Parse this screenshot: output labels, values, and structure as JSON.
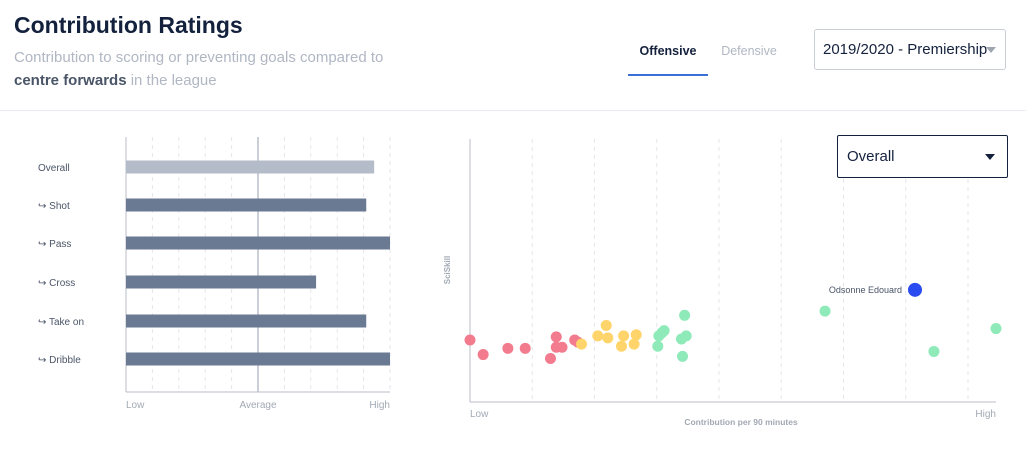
{
  "header": {
    "title": "Contribution Ratings",
    "subtitle_line1": "Contribution to scoring or preventing goals compared to",
    "subtitle_bold": "centre forwards",
    "subtitle_rest": " in the league"
  },
  "tabs": [
    {
      "label": "Offensive",
      "active": true
    },
    {
      "label": "Defensive",
      "active": false
    }
  ],
  "season_select": {
    "value": "2019/2020 - Premiership"
  },
  "view_select": {
    "value": "Overall"
  },
  "colors": {
    "primary_bar": "#6b7a93",
    "overall_bar": "#b4bcc9",
    "accent": "#3b6fd6",
    "highlight": "#2a4bf0",
    "red": "#f27c8e",
    "yellow": "#ffd46b",
    "green": "#8eeab8"
  },
  "chart_data": [
    {
      "type": "bar",
      "orientation": "horizontal",
      "categories": [
        "Overall",
        "↪ Shot",
        "↪ Pass",
        "↪ Cross",
        "↪ Take on",
        "↪ Dribble"
      ],
      "values": [
        0.94,
        0.91,
        1.0,
        0.72,
        0.91,
        1.0
      ],
      "xlim": [
        0,
        1
      ],
      "x_tick_labels": [
        "Low",
        "Average",
        "High"
      ],
      "x_tick_positions": [
        0,
        0.5,
        1
      ],
      "grid": true
    },
    {
      "type": "scatter",
      "xlabel": "Contribution per 90 minutes",
      "ylabel": "SciSkill",
      "x_tick_labels": [
        "Low",
        "High"
      ],
      "xlim": [
        0,
        100
      ],
      "ylim": [
        0,
        100
      ],
      "grid": true,
      "highlight": {
        "name": "Odsonne Edouard",
        "x": 84.6,
        "y": 44.3
      },
      "series": [
        {
          "color": "red",
          "points": [
            [
              0,
              25.0
            ],
            [
              2.5,
              19.4
            ],
            [
              7.2,
              21.8
            ],
            [
              10.5,
              21.8
            ],
            [
              15.3,
              17.9
            ],
            [
              16.4,
              26.2
            ],
            [
              16.4,
              22.2
            ],
            [
              17.5,
              22.2
            ],
            [
              19.9,
              25.0
            ],
            [
              20.5,
              24.2
            ]
          ]
        },
        {
          "color": "yellow",
          "points": [
            [
              21.2,
              23.4
            ],
            [
              24.3,
              26.6
            ],
            [
              25.9,
              30.6
            ],
            [
              26.2,
              25.8
            ],
            [
              28.8,
              22.6
            ],
            [
              29.2,
              26.6
            ],
            [
              31.2,
              23.4
            ],
            [
              31.6,
              27.0
            ]
          ]
        },
        {
          "color": "green",
          "points": [
            [
              35.7,
              22.6
            ],
            [
              35.9,
              26.6
            ],
            [
              36.5,
              27.8
            ],
            [
              36.9,
              28.6
            ],
            [
              40.2,
              25.4
            ],
            [
              40.4,
              18.7
            ],
            [
              40.8,
              34.5
            ],
            [
              41.1,
              26.6
            ],
            [
              67.5,
              36.1
            ],
            [
              88.2,
              20.6
            ],
            [
              100,
              29.4
            ]
          ]
        }
      ]
    }
  ]
}
